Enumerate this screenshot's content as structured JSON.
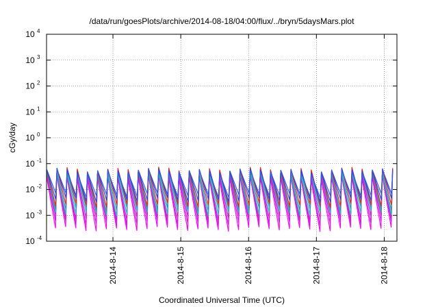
{
  "chart_data": {
    "type": "line",
    "title": "/data/run/goesPlots/archive/2014-08-18/04:00/flux/../bryn/5daysMars.plot",
    "xlabel": "Coordinated Universal Time (UTC)",
    "ylabel": "cGy/day",
    "x_type": "date",
    "xlim": [
      "2014-08-13T00:30",
      "2014-08-18T04:30"
    ],
    "x_ticks": [
      "2014-8-14",
      "2014-8-15",
      "2014-8-16",
      "2014-8-17",
      "2014-8-18"
    ],
    "y_scale": "log",
    "ylim": [
      0.0001,
      10000
    ],
    "y_ticks": [
      {
        "base": "10",
        "exp": "-4"
      },
      {
        "base": "10",
        "exp": "-3"
      },
      {
        "base": "10",
        "exp": "-2"
      },
      {
        "base": "10",
        "exp": "-1"
      },
      {
        "base": "10",
        "exp": "0"
      },
      {
        "base": "10",
        "exp": "1"
      },
      {
        "base": "10",
        "exp": "2"
      },
      {
        "base": "10",
        "exp": "3"
      },
      {
        "base": "10",
        "exp": "4"
      }
    ],
    "grid": true,
    "legend": "none",
    "cycle_hours": 3.6,
    "series": [
      {
        "color": "#ff00ff",
        "values": [
          0.0003,
          0.03
        ]
      },
      {
        "color": "#dd11ee",
        "values": [
          0.0005,
          0.035
        ]
      },
      {
        "color": "#cc22cc",
        "values": [
          0.0008,
          0.04
        ]
      },
      {
        "color": "#00cccc",
        "values": [
          0.0012,
          0.045
        ]
      },
      {
        "color": "#20a0b0",
        "values": [
          0.0018,
          0.05
        ]
      },
      {
        "color": "#ff2200",
        "values": [
          0.0025,
          0.06
        ]
      },
      {
        "color": "#2040ff",
        "values": [
          0.004,
          0.055
        ]
      },
      {
        "color": "#3355ee",
        "values": [
          0.006,
          0.05
        ]
      }
    ]
  }
}
